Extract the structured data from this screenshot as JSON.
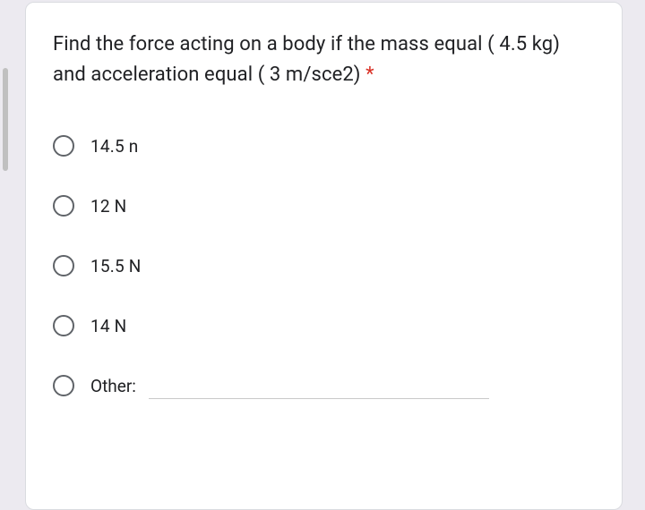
{
  "card": {
    "background_color": "#ffffff",
    "border_color": "#dadce0",
    "border_radius": 10
  },
  "page": {
    "background_color": "#eceaf0"
  },
  "question": {
    "text": "Find the force acting on a body if the mass equal ( 4.5 kg) and acceleration equal ( 3 m/sce2) ",
    "required_marker": "*",
    "required_color": "#d93025",
    "font_size": 22,
    "text_color": "#202124"
  },
  "options": [
    {
      "label": "14.5 n"
    },
    {
      "label": "12 N"
    },
    {
      "label": "15.5 N"
    },
    {
      "label": "14 N"
    }
  ],
  "other": {
    "label": "Other:",
    "placeholder": ""
  },
  "radio_style": {
    "border_color": "#5f6368",
    "size": 24
  },
  "option_font_size": 19
}
